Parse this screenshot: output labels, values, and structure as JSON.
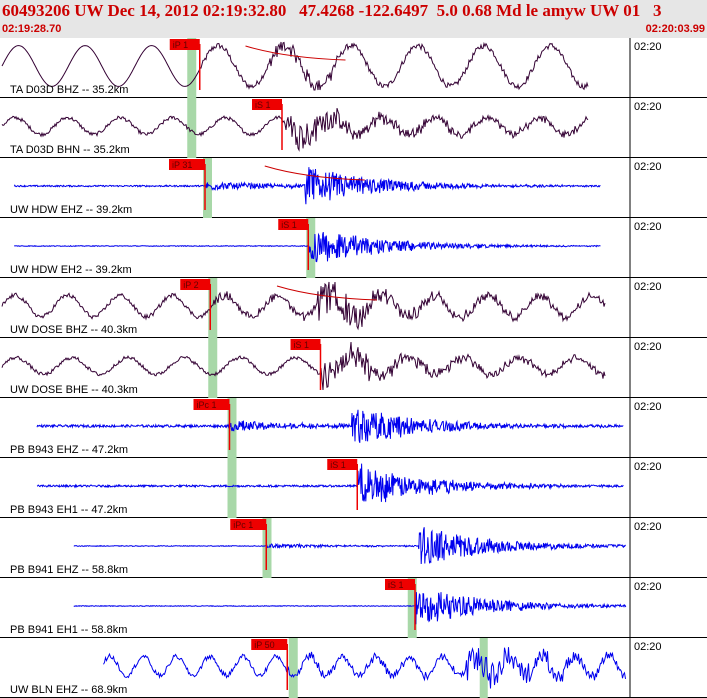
{
  "header": {
    "title": "60493206 UW Dec 14, 2012 02:19:32.80   47.4268 -122.6497  5.0 0.68 Md le amyw UW 01   3",
    "start_time": "02:19:28.70",
    "end_time": "02:20:03.99"
  },
  "chart_data": {
    "type": "line",
    "title": "60493206 UW Dec 14, 2012 02:19:32.80   47.4268 -122.6497  5.0 0.68 Md le amyw UW 01   3",
    "x_range": [
      "02:19:28.70",
      "02:20:03.99"
    ],
    "minute_mark_label": "02:20",
    "colors": {
      "pick": "#ee0000",
      "window": "#a8d8a8",
      "blue_trace": "#0000ee",
      "dark_trace": "#330033"
    },
    "traces": [
      {
        "label": "TA D03D BHZ -- 35.2km",
        "color": "#330033",
        "style": "long_period",
        "start_s": 0.0,
        "end_s": 33.5,
        "pick_label": "iP 1",
        "pick_s": 11.3,
        "window_s": 10.7,
        "s_s": 16.2,
        "amp": 0.85,
        "noise": 0.12,
        "period_s": 3.8,
        "fit_curve": true
      },
      {
        "label": "TA D03D BHN -- 35.2km",
        "color": "#330033",
        "style": "mixed",
        "start_s": 0.0,
        "end_s": 33.5,
        "pick_label": "iS 1",
        "pick_s": 16.0,
        "window_s": 10.7,
        "s_s": 16.2,
        "amp": 0.35,
        "noise": 0.15,
        "period_s": 3.0,
        "fit_curve": false
      },
      {
        "label": "UW HDW EHZ -- 39.2km",
        "color": "#0000ee",
        "style": "hf",
        "start_s": 0.7,
        "end_s": 34.2,
        "pick_label": "iP 31",
        "pick_s": 11.6,
        "window_s": 11.6,
        "s_s": 17.3,
        "amp": 0.12,
        "noise": 0.06,
        "period_s": 0.4,
        "fit_curve": true
      },
      {
        "label": "UW HDW EH2 -- 39.2km",
        "color": "#0000ee",
        "style": "hf",
        "start_s": 0.7,
        "end_s": 34.2,
        "pick_label": "iS 1",
        "pick_s": 17.5,
        "window_s": 17.5,
        "s_s": 17.5,
        "amp": 0.08,
        "noise": 0.03,
        "period_s": 0.4,
        "fit_curve": false
      },
      {
        "label": "UW DOSE BHZ -- 40.3km",
        "color": "#330033",
        "style": "mixed",
        "start_s": 0.0,
        "end_s": 34.5,
        "pick_label": "iP 2",
        "pick_s": 11.9,
        "window_s": 11.9,
        "s_s": 18.0,
        "amp": 0.45,
        "noise": 0.18,
        "period_s": 3.0,
        "fit_curve": true
      },
      {
        "label": "UW DOSE BHE -- 40.3km",
        "color": "#330033",
        "style": "mixed",
        "start_s": 0.0,
        "end_s": 34.5,
        "pick_label": "iS 1",
        "pick_s": 18.2,
        "window_s": 11.9,
        "s_s": 18.2,
        "amp": 0.35,
        "noise": 0.15,
        "period_s": 3.2,
        "fit_curve": false
      },
      {
        "label": "PB B943 EHZ -- 47.2km",
        "color": "#0000ee",
        "style": "hf",
        "start_s": 2.0,
        "end_s": 35.5,
        "pick_label": "iPc 1",
        "pick_s": 13.0,
        "window_s": 13.0,
        "s_s": 20.0,
        "amp": 0.15,
        "noise": 0.1,
        "period_s": 0.4,
        "fit_curve": false
      },
      {
        "label": "PB B943 EH1 -- 47.2km",
        "color": "#0000ee",
        "style": "hf",
        "start_s": 2.0,
        "end_s": 35.5,
        "pick_label": "iS 1",
        "pick_s": 20.3,
        "window_s": 13.0,
        "s_s": 20.3,
        "amp": 0.15,
        "noise": 0.08,
        "period_s": 0.4,
        "fit_curve": false
      },
      {
        "label": "PB B941 EHZ -- 58.8km",
        "color": "#0000ee",
        "style": "hf",
        "start_s": 4.1,
        "end_s": 37.4,
        "pick_label": "iPc 1",
        "pick_s": 15.1,
        "window_s": 15.0,
        "s_s": 23.8,
        "amp": 0.06,
        "noise": 0.03,
        "period_s": 0.4,
        "fit_curve": false
      },
      {
        "label": "PB B941 EH1 -- 58.8km",
        "color": "#0000ee",
        "style": "hf",
        "start_s": 4.1,
        "end_s": 37.4,
        "pick_label": "iS 1",
        "pick_s": 23.6,
        "window_s": 23.3,
        "s_s": 23.6,
        "amp": 0.06,
        "noise": 0.03,
        "period_s": 0.4,
        "fit_curve": false
      },
      {
        "label": "UW BLN EHZ -- 68.9km",
        "color": "#0000ee",
        "style": "mixed",
        "start_s": 5.8,
        "end_s": 38.6,
        "pick_label": "iP 50",
        "pick_s": 16.3,
        "window_s": 16.5,
        "s_s": 26.5,
        "amp": 0.4,
        "noise": 0.2,
        "period_s": 1.9,
        "fit_curve": false
      }
    ]
  }
}
